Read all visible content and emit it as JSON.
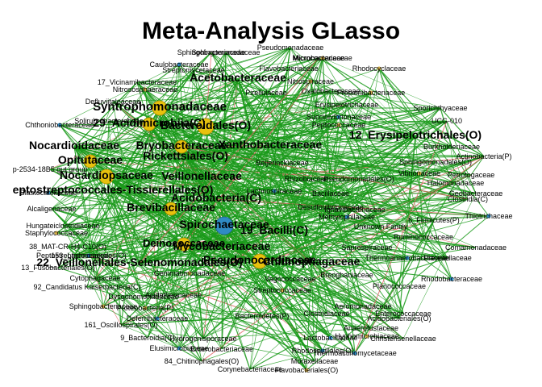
{
  "title": "Meta-Analysis GLasso",
  "colors": {
    "edge_positive": "#1a9a1a",
    "edge_negative": "#e06666",
    "node_hub": "#e8c20e",
    "node_hub_stroke": "#a88a00",
    "node_blue": "#2f8bc4",
    "node_small": "#d9b24a",
    "label": "#000000",
    "background": "#ffffff"
  },
  "nodes": [
    {
      "label": "Acetobacteraceae",
      "emphasis": "bold"
    },
    {
      "label": "Syntrophomonadaceae",
      "emphasis": "bold"
    },
    {
      "label": "29_Acidimicrobiia(C)",
      "emphasis": "bold"
    },
    {
      "label": "Bacteroidales(O)",
      "emphasis": "bold"
    },
    {
      "label": "12_Erysipelotrichales(O)",
      "emphasis": "bold"
    },
    {
      "label": "Nocardioidaceae",
      "emphasis": "bold"
    },
    {
      "label": "Bryobacteraceae",
      "emphasis": "bold"
    },
    {
      "label": "Xanthobacteraceae",
      "emphasis": "bold"
    },
    {
      "label": "Opitutaceae",
      "emphasis": "bold"
    },
    {
      "label": "Rickettsiales(O)",
      "emphasis": "bold"
    },
    {
      "label": "Nocardiopsaceae",
      "emphasis": "bold"
    },
    {
      "label": "Veillonellaceae",
      "emphasis": "bold"
    },
    {
      "label": "eptostreptococcales-Tissierellales(O)",
      "emphasis": "bold"
    },
    {
      "label": "Acidobacteria(C)",
      "emphasis": "bold"
    },
    {
      "label": "Brevibacillaceae",
      "emphasis": "bold"
    },
    {
      "label": "Spirochaetaceae",
      "emphasis": "bold"
    },
    {
      "label": "19_Bacilli(C)",
      "emphasis": "bold"
    },
    {
      "label": "Deinococcaceae",
      "emphasis": "bold"
    },
    {
      "label": "Mycobacteriaceae",
      "emphasis": "bold"
    },
    {
      "label": "22_Veillonellales-Selenomonadales(O)",
      "emphasis": "bold"
    },
    {
      "label": "Pseudonocardiaceae",
      "emphasis": "bold"
    },
    {
      "label": "Chitinophagaceae",
      "emphasis": "bold"
    },
    {
      "label": "Pseudomonadaceae",
      "emphasis": "normal"
    },
    {
      "label": "Sphingobacteriaceae",
      "emphasis": "normal"
    },
    {
      "label": "Caulobacteraceae",
      "emphasis": "normal"
    },
    {
      "label": "Streptomycetaceae",
      "emphasis": "normal"
    },
    {
      "label": "Flavobacteriaceae",
      "emphasis": "normal"
    },
    {
      "label": "Nitrososphaeraceae",
      "emphasis": "normal"
    },
    {
      "label": "Defluviitaleaceae",
      "emphasis": "normal"
    },
    {
      "label": "Solirubrobacteraceae",
      "emphasis": "normal"
    },
    {
      "label": "Chthoniobacteraceae",
      "emphasis": "normal"
    },
    {
      "label": "Sporichthyaceae",
      "emphasis": "normal"
    },
    {
      "label": "UCG-010",
      "emphasis": "normal"
    },
    {
      "label": "Vibrionaceae",
      "emphasis": "normal"
    },
    {
      "label": "Petrotogaceae",
      "emphasis": "normal"
    },
    {
      "label": "Geobacteraceae",
      "emphasis": "normal"
    },
    {
      "label": "Thiotrichaceae",
      "emphasis": "normal"
    },
    {
      "label": "p-2534-18B5 gut group",
      "emphasis": "normal"
    },
    {
      "label": "Alcaligenaceae",
      "emphasis": "normal"
    },
    {
      "label": "Staphylococcaceae",
      "emphasis": "normal"
    },
    {
      "label": "Hungateiclostridiaceae",
      "emphasis": "normal"
    },
    {
      "label": "38_MAT-CR-H4-C10(O)",
      "emphasis": "normal"
    },
    {
      "label": "153_Lachnospirales(O)",
      "emphasis": "normal"
    },
    {
      "label": "13_Fusobacteriales(O)",
      "emphasis": "normal"
    },
    {
      "label": "92_Candidatus Kaiserbacteria(C)",
      "emphasis": "normal"
    },
    {
      "label": "Sphingobacteriaceae",
      "emphasis": "normal"
    },
    {
      "label": "161_Oscillospirales(O)",
      "emphasis": "normal"
    },
    {
      "label": "9_Bacteroidia(C)",
      "emphasis": "normal"
    },
    {
      "label": "Elusimicrobiaceae",
      "emphasis": "normal"
    },
    {
      "label": "84_Chitinophagales(O)",
      "emphasis": "normal"
    },
    {
      "label": "Corynebacteriaceae",
      "emphasis": "normal"
    },
    {
      "label": "Flavobacteriales(O)",
      "emphasis": "normal"
    },
    {
      "label": "Moraxellaceae",
      "emphasis": "normal"
    },
    {
      "label": "Christensenellaceae",
      "emphasis": "normal"
    },
    {
      "label": "Thermoactinomycetaceae",
      "emphasis": "normal"
    },
    {
      "label": "Anaerofustaceae",
      "emphasis": "normal"
    },
    {
      "label": "Aeromonadaceae",
      "emphasis": "normal"
    },
    {
      "label": "Rhodocyclaceae",
      "emphasis": "normal"
    },
    {
      "label": "Ruminococcaceae",
      "emphasis": "normal"
    },
    {
      "label": "Unknown Family",
      "emphasis": "normal"
    },
    {
      "label": "Methylophilaceae",
      "emphasis": "normal"
    },
    {
      "label": "Saprospiraceae",
      "emphasis": "normal"
    },
    {
      "label": "Breoghaniaceae",
      "emphasis": "normal"
    },
    {
      "label": "Gemmatimonadaceae",
      "emphasis": "normal"
    },
    {
      "label": "Acidothermaceae",
      "emphasis": "normal"
    },
    {
      "label": "Cytophagaceae",
      "emphasis": "normal"
    },
    {
      "label": "Deferribacteraceae",
      "emphasis": "normal"
    },
    {
      "label": "Hydrogenisporaceae",
      "emphasis": "normal"
    },
    {
      "label": "Enterobacteriaceae",
      "emphasis": "normal"
    },
    {
      "label": "Nitrospiraceae",
      "emphasis": "normal"
    },
    {
      "label": "Bacillaceae",
      "emphasis": "normal"
    },
    {
      "label": "Halomonadaceae",
      "emphasis": "normal"
    },
    {
      "label": "Succinivibrionaceae",
      "emphasis": "normal"
    },
    {
      "label": "Micrococcaceae",
      "emphasis": "normal"
    },
    {
      "label": "Oxalobacteraceae",
      "emphasis": "normal"
    },
    {
      "label": "Peptococcaceae",
      "emphasis": "normal"
    },
    {
      "label": "Burkholderiaceae",
      "emphasis": "normal"
    },
    {
      "label": "Prevotellaceae",
      "emphasis": "normal"
    },
    {
      "label": "Rhodobacteraceae",
      "emphasis": "normal"
    },
    {
      "label": "Comamonadaceae",
      "emphasis": "normal"
    },
    {
      "label": "Vagococcaceae",
      "emphasis": "normal"
    },
    {
      "label": "Streptococcaceae",
      "emphasis": "normal"
    },
    {
      "label": "6_Firmicutes(P)",
      "emphasis": "normal"
    },
    {
      "label": "Clostridiaceae",
      "emphasis": "normal"
    },
    {
      "label": "Lactobacillaceae",
      "emphasis": "normal"
    },
    {
      "label": "Erysipelotrichaceae",
      "emphasis": "normal"
    },
    {
      "label": "17_Vicinamibacteraceae",
      "emphasis": "normal"
    },
    {
      "label": "Microbacteriaceae",
      "emphasis": "normal"
    },
    {
      "label": "Pirellulaceae",
      "emphasis": "normal"
    },
    {
      "label": "Sphingomonadaceae",
      "emphasis": "normal"
    },
    {
      "label": "Blastocatellaceae",
      "emphasis": "normal"
    },
    {
      "label": "Peptostreptococcaceae",
      "emphasis": "normal"
    },
    {
      "label": "Enterococcaceae",
      "emphasis": "normal"
    },
    {
      "label": "Hyphomicrobiaceae",
      "emphasis": "normal"
    },
    {
      "label": "Dysgonomonadaceae",
      "emphasis": "normal"
    },
    {
      "label": "Ignavibacteriaceae",
      "emphasis": "normal"
    },
    {
      "label": "Thermoanaerobaculaceae",
      "emphasis": "normal"
    },
    {
      "label": "Rhizobiaceae",
      "emphasis": "normal"
    },
    {
      "label": "Beijerinckiaceae",
      "emphasis": "normal"
    },
    {
      "label": "Propionibacteriaceae",
      "emphasis": "normal"
    },
    {
      "label": "Planococcaceae",
      "emphasis": "normal"
    },
    {
      "label": "Desulfovibrionaceae",
      "emphasis": "normal"
    },
    {
      "label": "Lachnospiraceae",
      "emphasis": "normal"
    },
    {
      "label": "Clostridia(C)",
      "emphasis": "normal"
    },
    {
      "label": "Actinobacteria(P)",
      "emphasis": "normal"
    },
    {
      "label": "Proteobacteria(P)",
      "emphasis": "normal"
    },
    {
      "label": "Pseudomonadales(O)",
      "emphasis": "normal"
    },
    {
      "label": "Acidobacteriales(O)",
      "emphasis": "normal"
    },
    {
      "label": "Rhodospirillales(O)",
      "emphasis": "normal"
    },
    {
      "label": "Bacteroidetes(P)",
      "emphasis": "normal"
    },
    {
      "label": "Sphingomonadales(O)",
      "emphasis": "normal"
    }
  ]
}
